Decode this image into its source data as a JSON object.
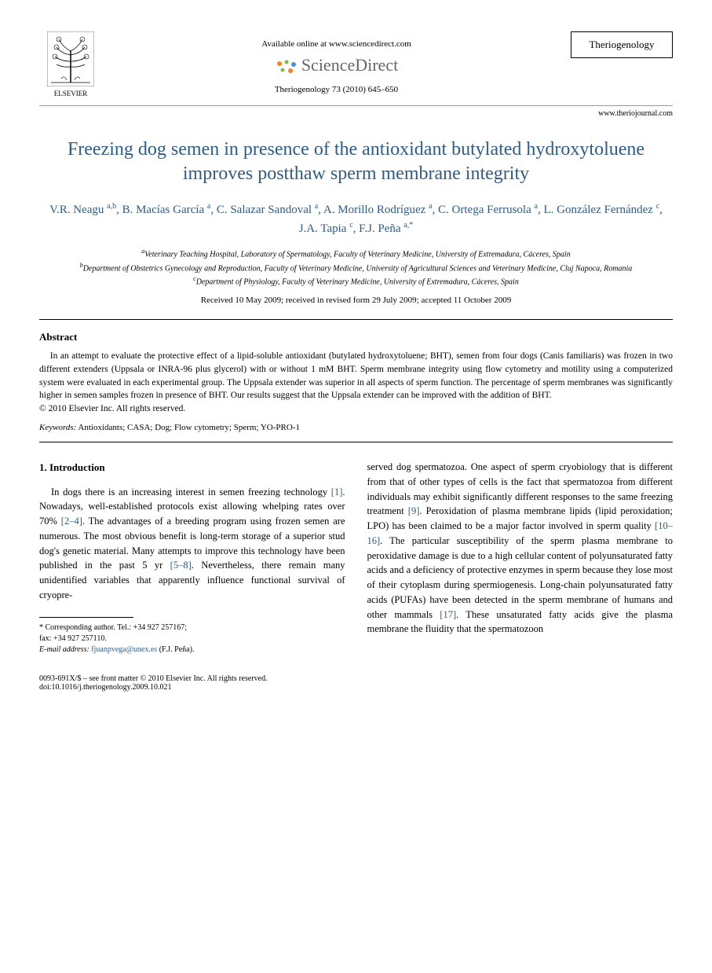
{
  "header": {
    "publisher_name": "ELSEVIER",
    "available_text": "Available online at www.sciencedirect.com",
    "platform_name": "ScienceDirect",
    "journal_ref": "Theriogenology 73 (2010) 645–650",
    "journal_name": "Theriogenology",
    "journal_url": "www.theriojournal.com"
  },
  "title": "Freezing dog semen in presence of the antioxidant butylated hydroxytoluene improves postthaw sperm membrane integrity",
  "authors_html": "V.R. Neagu <sup>a,b</sup>, B. Macías García <sup>a</sup>, C. Salazar Sandoval <sup>a</sup>, A. Morillo Rodríguez <sup>a</sup>, C. Ortega Ferrusola <sup>a</sup>, L. González Fernández <sup>c</sup>, J.A. Tapia <sup>c</sup>, F.J. Peña <sup>a,*</sup>",
  "affiliations": {
    "a": "Veterinary Teaching Hospital, Laboratory of Spermatology, Faculty of Veterinary Medicine, University of Extremadura, Cáceres, Spain",
    "b": "Department of Obstetrics Gynecology and Reproduction, Faculty of Veterinary Medicine, University of Agricultural Sciences and Veterinary Medicine, Cluj Napoca, Romania",
    "c": "Department of Physiology, Faculty of Veterinary Medicine, University of Extremadura, Cáceres, Spain"
  },
  "dates": "Received 10 May 2009; received in revised form 29 July 2009; accepted 11 October 2009",
  "abstract": {
    "heading": "Abstract",
    "text": "In an attempt to evaluate the protective effect of a lipid-soluble antioxidant (butylated hydroxytoluene; BHT), semen from four dogs (Canis familiaris) was frozen in two different extenders (Uppsala or INRA-96 plus glycerol) with or without 1 mM BHT. Sperm membrane integrity using flow cytometry and motility using a computerized system were evaluated in each experimental group. The Uppsala extender was superior in all aspects of sperm function. The percentage of sperm membranes was significantly higher in semen samples frozen in presence of BHT. Our results suggest that the Uppsala extender can be improved with the addition of BHT.",
    "copyright": "© 2010 Elsevier Inc. All rights reserved."
  },
  "keywords": {
    "label": "Keywords:",
    "list": "Antioxidants; CASA; Dog; Flow cytometry; Sperm; YO-PRO-1"
  },
  "intro": {
    "number": "1.",
    "heading": "Introduction",
    "col1_pre": "In dogs there is an increasing interest in semen freezing technology ",
    "ref1": "[1]",
    "col1_mid1": ". Nowadays, well-established protocols exist allowing whelping rates over 70% ",
    "ref2": "[2–4]",
    "col1_mid2": ". The advantages of a breeding program using frozen semen are numerous. The most obvious benefit is long-term storage of a superior stud dog's genetic material. Many attempts to improve this technology have been published in the past 5 yr ",
    "ref3": "[5–8]",
    "col1_post": ". Nevertheless, there remain many unidentified variables that apparently influence functional survival of cryopre-",
    "col2_pre": "served dog spermatozoa. One aspect of sperm cryobiology that is different from that of other types of cells is the fact that spermatozoa from different individuals may exhibit significantly different responses to the same freezing treatment ",
    "ref9": "[9]",
    "col2_mid1": ". Peroxidation of plasma membrane lipids (lipid peroxidation; LPO) has been claimed to be a major factor involved in sperm quality ",
    "ref10": "[10–16]",
    "col2_mid2": ". The particular susceptibility of the sperm plasma membrane to peroxidative damage is due to a high cellular content of polyunsaturated fatty acids and a deficiency of protective enzymes in sperm because they lose most of their cytoplasm during spermiogenesis. Long-chain polyunsaturated fatty acids (PUFAs) have been detected in the sperm membrane of humans and other mammals ",
    "ref17": "[17]",
    "col2_post": ". These unsaturated fatty acids give the plasma membrane the fluidity that the spermatozoon"
  },
  "footnote": {
    "corr": "* Corresponding author. Tel.: +34 927 257167;",
    "fax": "fax: +34 927 257110.",
    "email_label": "E-mail address:",
    "email": "fjuanpvega@unex.es",
    "email_name": "(F.J. Peña)."
  },
  "footer": {
    "issn": "0093-691X/$ – see front matter © 2010 Elsevier Inc. All rights reserved.",
    "doi": "doi:10.1016/j.theriogenology.2009.10.021"
  },
  "colors": {
    "link": "#2e5c8a",
    "text": "#000000",
    "sd_gray": "#666666",
    "sd_orange": "#f58220",
    "sd_green": "#7fba42",
    "sd_blue": "#4a90d9"
  }
}
